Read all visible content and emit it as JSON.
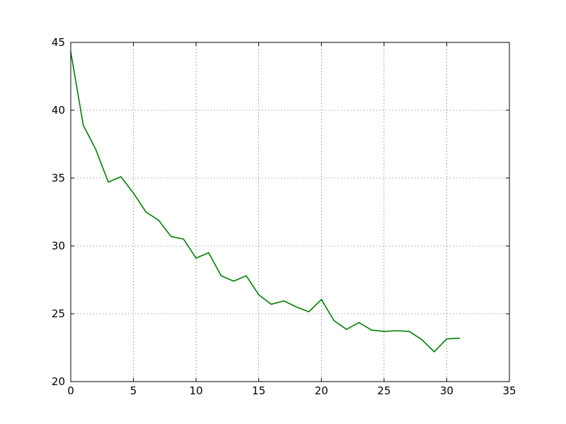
{
  "chart_data": {
    "type": "line",
    "title": "",
    "xlabel": "",
    "ylabel": "",
    "xlim": [
      0,
      35
    ],
    "ylim": [
      20,
      45
    ],
    "xticks": [
      0,
      5,
      10,
      15,
      20,
      25,
      30,
      35
    ],
    "yticks": [
      20,
      25,
      30,
      35,
      40,
      45
    ],
    "grid": true,
    "legend": "none",
    "series": [
      {
        "color": "#007f00",
        "x": [
          0,
          1,
          2,
          3,
          4,
          5,
          6,
          7,
          8,
          9,
          10,
          11,
          12,
          13,
          14,
          15,
          16,
          17,
          18,
          19,
          20,
          21,
          22,
          23,
          24,
          25,
          26,
          27,
          28,
          29,
          30,
          31
        ],
        "y": [
          44.3,
          38.9,
          37.1,
          34.7,
          35.1,
          33.9,
          32.5,
          31.9,
          30.7,
          30.5,
          29.1,
          29.5,
          27.8,
          27.4,
          27.8,
          26.4,
          25.7,
          25.95,
          25.5,
          25.15,
          26.05,
          24.5,
          23.85,
          24.35,
          23.8,
          23.7,
          23.75,
          23.7,
          23.1,
          22.2,
          23.15,
          23.2
        ]
      }
    ]
  }
}
